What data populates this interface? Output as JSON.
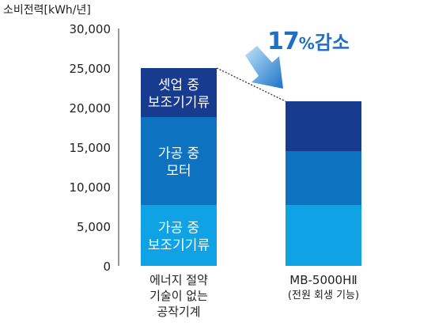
{
  "chart_data": {
    "type": "bar",
    "stacked": true,
    "ylabel": "소비전력[kWh/년]",
    "ylim": [
      0,
      30000
    ],
    "yticks": [
      "30,000",
      "25,000",
      "20,000",
      "15,000",
      "10,000",
      "5,000",
      "0"
    ],
    "ytick_values": [
      30000,
      25000,
      20000,
      15000,
      10000,
      5000,
      0
    ],
    "categories": [
      [
        "에너지 절약",
        "기술이 없는",
        "공작기계"
      ],
      [
        "MB-5000HⅡ",
        "(전원 회생 기능)"
      ]
    ],
    "series": [
      {
        "name": [
          "가공 중",
          "보조기기류"
        ],
        "color": "#0fa3e6",
        "values": [
          7700,
          7700
        ]
      },
      {
        "name": [
          "가공 중",
          "모터"
        ],
        "color": "#0d72c0",
        "values": [
          11100,
          6800
        ]
      },
      {
        "name": [
          "셋업 중",
          "보조기기류"
        ],
        "color": "#173b8e",
        "values": [
          6200,
          6300
        ]
      }
    ],
    "annotation": {
      "number": "17",
      "percent": "%",
      "text": "감소"
    },
    "legend": "inside-bars"
  }
}
